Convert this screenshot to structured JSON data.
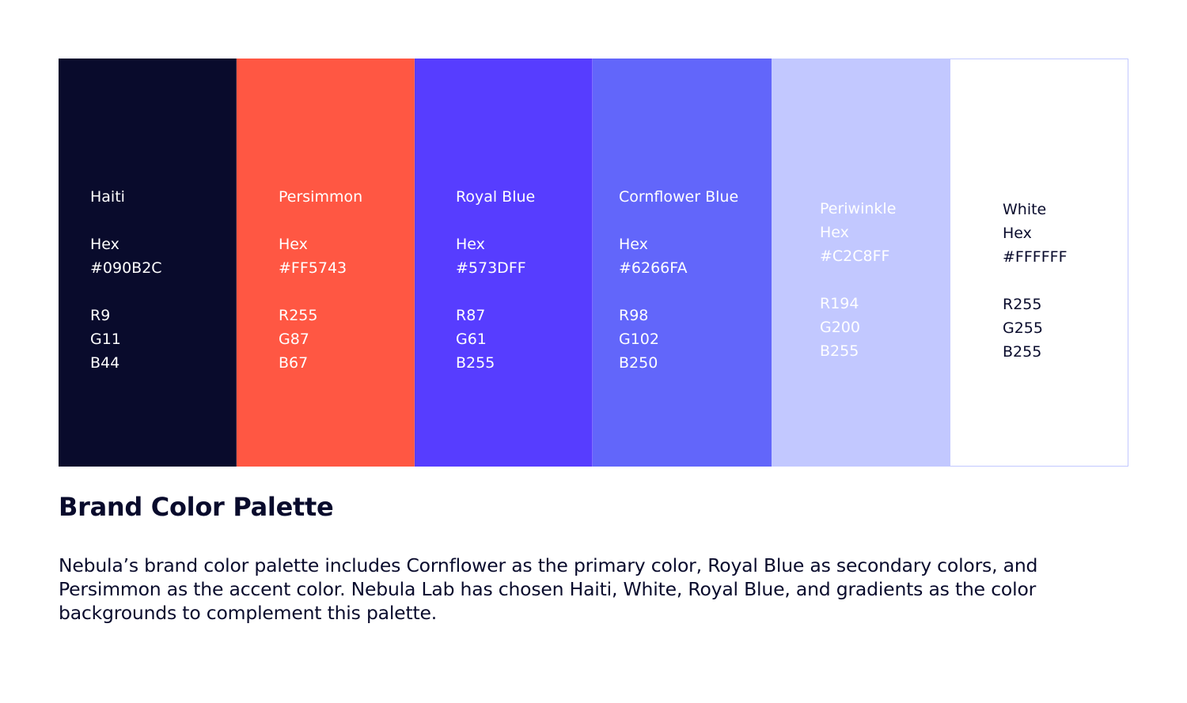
{
  "swatches": [
    {
      "name": "Haiti",
      "hex_label": "Hex",
      "hex": "#090B2C",
      "r": "R9",
      "g": "G11",
      "b": "B44",
      "background": "#090B2C",
      "text_color": "#FFFFFF"
    },
    {
      "name": "Persimmon",
      "hex_label": "Hex",
      "hex": "#FF5743",
      "r": "R255",
      "g": "G87",
      "b": "B67",
      "background": "#FF5743",
      "text_color": "#FFFFFF"
    },
    {
      "name": "Royal Blue",
      "hex_label": "Hex",
      "hex": "#573DFF",
      "r": "R87",
      "g": "G61",
      "b": "B255",
      "background": "#573DFF",
      "text_color": "#FFFFFF"
    },
    {
      "name": "Cornflower Blue",
      "hex_label": "Hex",
      "hex": "#6266FA",
      "r": "R98",
      "g": "G102",
      "b": "B250",
      "background": "#6266FA",
      "text_color": "#FFFFFF"
    },
    {
      "name": "Periwinkle",
      "hex_label": "Hex",
      "hex": "#C2C8FF",
      "r": "R194",
      "g": "G200",
      "b": "B255",
      "background": "#C2C8FF",
      "text_color": "#FFFFFF"
    },
    {
      "name": "White",
      "hex_label": "Hex",
      "hex": "#FFFFFF",
      "r": "R255",
      "g": "G255",
      "b": "B255",
      "background": "#FFFFFF",
      "text_color": "#090B2C"
    }
  ],
  "title": "Brand Color Palette",
  "description": "Nebula’s brand color palette includes Cornflower as the primary color, Royal Blue as secondary colors, and Persimmon as the accent color. Nebula Lab has chosen Haiti, White, Royal Blue, and gradients as the color backgrounds to complement this palette."
}
